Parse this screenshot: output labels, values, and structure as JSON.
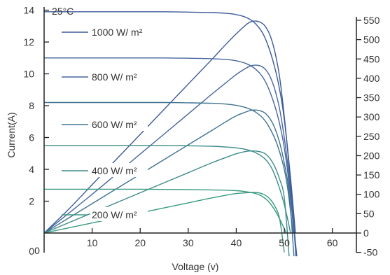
{
  "chart_data": {
    "type": "line",
    "annotation": "25°C",
    "xlabel": "Voltage (v)",
    "ylabel_left": "Current(A)",
    "x_ticks": [
      10,
      20,
      30,
      40,
      50,
      60
    ],
    "x_origin_label": "0",
    "y_left_ticks": [
      0,
      2,
      4,
      6,
      8,
      10,
      12,
      14
    ],
    "y_right_ticks": [
      -50,
      0,
      50,
      100,
      150,
      200,
      250,
      300,
      350,
      400,
      450,
      500,
      550
    ],
    "xlim": [
      0,
      65
    ],
    "ylim_left": [
      0,
      14.2
    ],
    "ylim_right": [
      -50,
      566
    ],
    "series": [
      {
        "name": "1000 W/ m²",
        "color": "#3d5a99",
        "current": {
          "x": [
            0,
            5,
            10,
            15,
            20,
            25,
            30,
            35,
            38,
            40,
            42,
            44,
            46,
            48,
            49.5,
            50.5,
            51.5,
            52.3
          ],
          "y": [
            13.9,
            13.9,
            13.9,
            13.9,
            13.9,
            13.9,
            13.88,
            13.85,
            13.8,
            13.72,
            13.55,
            13.15,
            12.25,
            10.4,
            8.2,
            5.8,
            2.8,
            0
          ]
        },
        "power": {
          "x": [
            0,
            5,
            10,
            15,
            20,
            25,
            30,
            35,
            38,
            40,
            42,
            43,
            44,
            45,
            46,
            47,
            48,
            49,
            50,
            51,
            52,
            52.6
          ],
          "y": [
            0,
            60,
            125,
            190,
            255,
            320,
            385,
            450,
            490,
            515,
            538,
            546,
            548,
            545,
            535,
            512,
            470,
            405,
            300,
            170,
            20,
            -60
          ]
        }
      },
      {
        "name": "800 W/ m²",
        "color": "#46679f",
        "current": {
          "x": [
            0,
            5,
            10,
            15,
            20,
            25,
            30,
            35,
            38,
            40,
            42,
            44,
            46,
            48,
            49.5,
            50.5,
            51.3,
            52.0
          ],
          "y": [
            11.0,
            11.0,
            11.0,
            11.0,
            11.0,
            11.0,
            10.98,
            10.95,
            10.9,
            10.82,
            10.65,
            10.3,
            9.55,
            8.0,
            6.2,
            4.3,
            2.2,
            0
          ]
        },
        "power": {
          "x": [
            0,
            5,
            10,
            15,
            20,
            25,
            30,
            35,
            38,
            40,
            42,
            43,
            44,
            45,
            46,
            47,
            48,
            49,
            50,
            51,
            52,
            52.4
          ],
          "y": [
            0,
            50,
            100,
            152,
            204,
            256,
            308,
            360,
            390,
            410,
            426,
            432,
            434,
            432,
            424,
            405,
            372,
            322,
            245,
            145,
            10,
            -60
          ]
        }
      },
      {
        "name": "600 W/ m²",
        "color": "#3f7391",
        "current": {
          "x": [
            0,
            5,
            10,
            15,
            20,
            25,
            30,
            35,
            38,
            40,
            42,
            44,
            46,
            48,
            49.5,
            50.5,
            51.2,
            51.8
          ],
          "y": [
            8.2,
            8.2,
            8.2,
            8.2,
            8.2,
            8.2,
            8.18,
            8.15,
            8.1,
            8.02,
            7.88,
            7.6,
            7.05,
            5.95,
            4.6,
            3.2,
            1.6,
            0
          ]
        },
        "power": {
          "x": [
            0,
            5,
            10,
            15,
            20,
            25,
            30,
            35,
            38,
            40,
            42,
            43,
            44,
            45,
            46,
            47,
            48,
            49,
            50,
            51,
            52
          ],
          "y": [
            0,
            38,
            76,
            114,
            152,
            190,
            228,
            266,
            289,
            303,
            313,
            317,
            318,
            316,
            310,
            296,
            272,
            235,
            180,
            105,
            -60
          ]
        }
      },
      {
        "name": "400 W/ m²",
        "color": "#3f8a8a",
        "current": {
          "x": [
            0,
            5,
            10,
            15,
            20,
            25,
            30,
            35,
            38,
            40,
            42,
            44,
            46,
            47.5,
            48.8,
            49.8,
            50.6,
            51.3
          ],
          "y": [
            5.5,
            5.5,
            5.5,
            5.5,
            5.5,
            5.5,
            5.48,
            5.45,
            5.4,
            5.35,
            5.25,
            5.05,
            4.65,
            4.0,
            3.0,
            2.0,
            1.0,
            0
          ]
        },
        "power": {
          "x": [
            0,
            5,
            10,
            15,
            20,
            25,
            30,
            35,
            38,
            40,
            42,
            43,
            44,
            45,
            46,
            47,
            48,
            49,
            50,
            51
          ],
          "y": [
            0,
            26,
            52,
            78,
            104,
            130,
            156,
            182,
            196,
            205,
            211,
            212,
            212,
            210,
            205,
            193,
            172,
            140,
            90,
            -60
          ]
        }
      },
      {
        "name": "200 W/ m²",
        "color": "#3a9a82",
        "current": {
          "x": [
            0,
            5,
            10,
            15,
            20,
            25,
            30,
            35,
            38,
            40,
            42,
            44,
            45.5,
            46.8,
            48,
            49,
            49.8,
            50.4
          ],
          "y": [
            2.75,
            2.75,
            2.75,
            2.75,
            2.75,
            2.74,
            2.73,
            2.71,
            2.69,
            2.66,
            2.6,
            2.48,
            2.28,
            1.95,
            1.45,
            0.9,
            0.4,
            0
          ]
        },
        "power": {
          "x": [
            0,
            5,
            10,
            15,
            20,
            25,
            30,
            35,
            38,
            40,
            42,
            43,
            44,
            45,
            46,
            47,
            48,
            49,
            50
          ],
          "y": [
            0,
            13,
            26,
            39,
            52,
            65,
            78,
            91,
            98,
            102,
            104,
            105,
            105,
            103,
            98,
            88,
            70,
            38,
            -50
          ]
        }
      }
    ]
  }
}
